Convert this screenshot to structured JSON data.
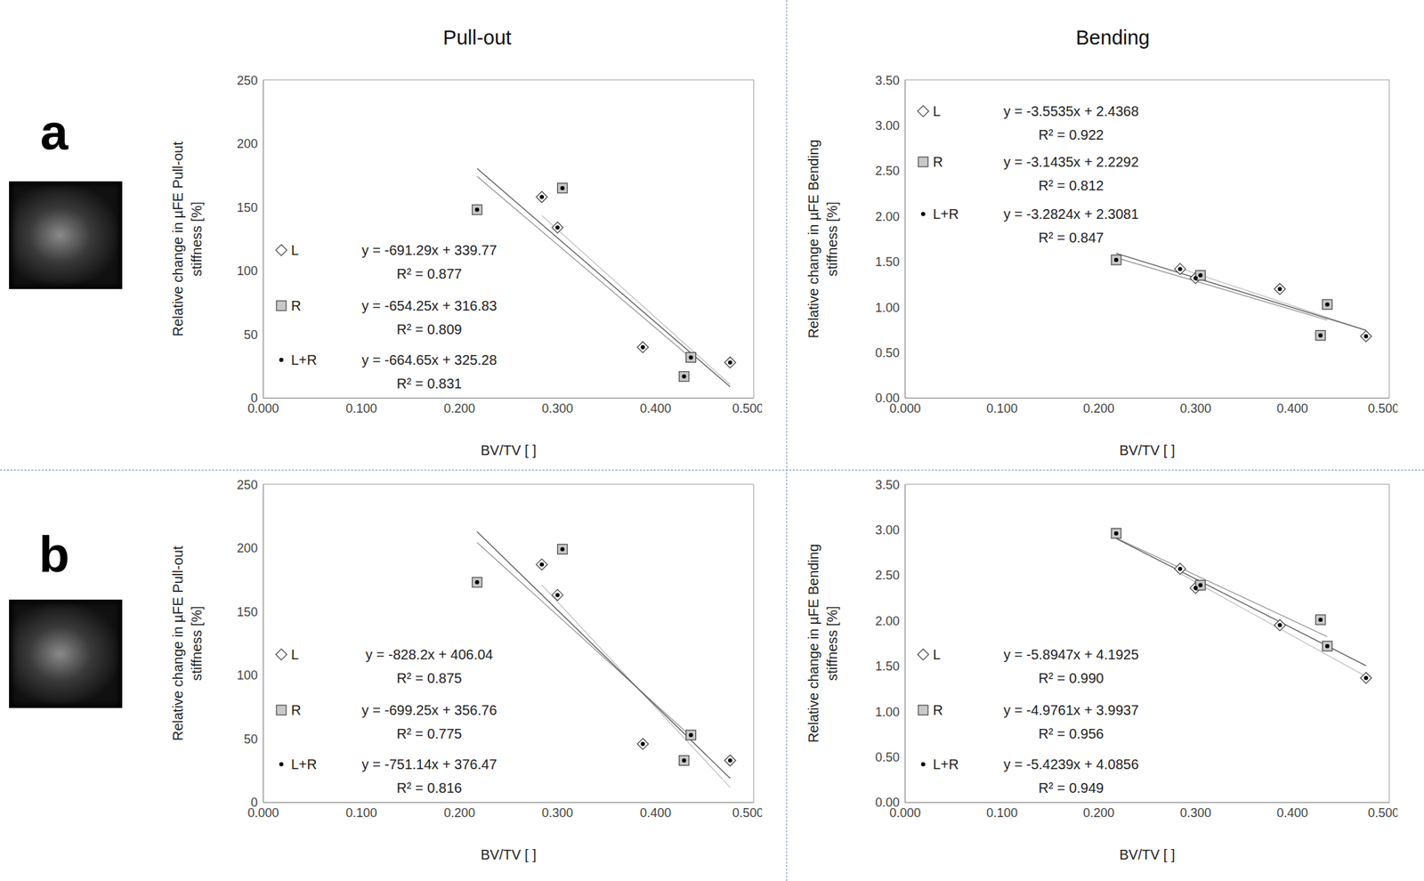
{
  "panel_labels": [
    "a",
    "b"
  ],
  "column_titles": [
    "Pull-out",
    "Bending"
  ],
  "chart_data": [
    {
      "type": "scatter",
      "panel": "a",
      "xlabel": "BV/TV [ ]",
      "ylabel": "Relative change in µFE Pull-out\nstiffness [%]",
      "xlim": [
        0,
        0.5
      ],
      "xticks": [
        {
          "value": 0,
          "label": "0.000"
        },
        {
          "value": 0.1,
          "label": "0.100"
        },
        {
          "value": 0.2,
          "label": "0.200"
        },
        {
          "value": 0.3,
          "label": "0.300"
        },
        {
          "value": 0.4,
          "label": "0.400"
        },
        {
          "value": 0.5,
          "label": "0.500"
        }
      ],
      "ylim": [
        0,
        250
      ],
      "yticks": [
        0,
        50,
        100,
        150,
        200,
        250
      ],
      "grid": false,
      "legend": "center left",
      "series": [
        {
          "name": "L",
          "marker": "diamond",
          "color": "#ffffff",
          "x": [
            0.284,
            0.3,
            0.387,
            0.476
          ],
          "values": [
            158,
            134,
            40,
            28
          ],
          "trendline": {
            "equation": "y = -691.29x + 339.77",
            "r2": "R² = 0.877",
            "slope": -691.29,
            "intercept": 339.77
          }
        },
        {
          "name": "R",
          "marker": "square",
          "color": "#c8c8c8",
          "x": [
            0.218,
            0.305,
            0.429,
            0.436
          ],
          "values": [
            148,
            165,
            17,
            32
          ],
          "trendline": {
            "equation": "y = -654.25x + 316.83",
            "r2": "R² = 0.809",
            "slope": -654.25,
            "intercept": 316.83
          }
        },
        {
          "name": "L+R",
          "marker": "dot",
          "color": "#000000",
          "x": [
            0.284,
            0.3,
            0.387,
            0.476,
            0.218,
            0.305,
            0.429,
            0.436
          ],
          "values": [
            158,
            134,
            40,
            28,
            148,
            165,
            17,
            32
          ],
          "trendline": {
            "equation": "y = -664.65x + 325.28",
            "r2": "R² = 0.831",
            "slope": -664.65,
            "intercept": 325.28
          }
        }
      ]
    },
    {
      "type": "scatter",
      "panel": "a",
      "xlabel": "BV/TV [ ]",
      "ylabel": "Relative change in µFE Bending\nstiffness [%]",
      "xlim": [
        0,
        0.5
      ],
      "xticks": [
        {
          "value": 0,
          "label": "0.000"
        },
        {
          "value": 0.1,
          "label": "0.100"
        },
        {
          "value": 0.2,
          "label": "0.200"
        },
        {
          "value": 0.3,
          "label": "0.300"
        },
        {
          "value": 0.4,
          "label": "0.400"
        },
        {
          "value": 0.5,
          "label": "0.500"
        }
      ],
      "ylim": [
        0,
        3.5
      ],
      "yticks": [
        {
          "value": 0,
          "label": "0.00"
        },
        {
          "value": 0.5,
          "label": "0.50"
        },
        {
          "value": 1,
          "label": "1.00"
        },
        {
          "value": 1.5,
          "label": "1.50"
        },
        {
          "value": 2,
          "label": "2.00"
        },
        {
          "value": 2.5,
          "label": "2.50"
        },
        {
          "value": 3,
          "label": "3.00"
        },
        {
          "value": 3.5,
          "label": "3.50"
        }
      ],
      "grid": false,
      "legend": "upper left",
      "series": [
        {
          "name": "L",
          "marker": "diamond",
          "color": "#ffffff",
          "x": [
            0.284,
            0.3,
            0.387,
            0.476
          ],
          "values": [
            1.42,
            1.32,
            1.2,
            0.68
          ],
          "trendline": {
            "equation": "y = -3.5535x + 2.4368",
            "r2": "R² = 0.922",
            "slope": -3.5535,
            "intercept": 2.4368
          }
        },
        {
          "name": "R",
          "marker": "square",
          "color": "#c8c8c8",
          "x": [
            0.218,
            0.305,
            0.429,
            0.436
          ],
          "values": [
            1.52,
            1.35,
            0.69,
            1.03
          ],
          "trendline": {
            "equation": "y = -3.1435x + 2.2292",
            "r2": "R² = 0.812",
            "slope": -3.1435,
            "intercept": 2.2292
          }
        },
        {
          "name": "L+R",
          "marker": "dot",
          "color": "#000000",
          "x": [
            0.284,
            0.3,
            0.387,
            0.476,
            0.218,
            0.305,
            0.429,
            0.436
          ],
          "values": [
            1.42,
            1.32,
            1.2,
            0.68,
            1.52,
            1.35,
            0.69,
            1.03
          ],
          "trendline": {
            "equation": "y = -3.2824x + 2.3081",
            "r2": "R² = 0.847",
            "slope": -3.2824,
            "intercept": 2.3081
          }
        }
      ]
    },
    {
      "type": "scatter",
      "panel": "b",
      "xlabel": "BV/TV [ ]",
      "ylabel": "Relative change in µFE Pull-out\nstiffness [%]",
      "xlim": [
        0,
        0.5
      ],
      "xticks": [
        {
          "value": 0,
          "label": "0.000"
        },
        {
          "value": 0.1,
          "label": "0.100"
        },
        {
          "value": 0.2,
          "label": "0.200"
        },
        {
          "value": 0.3,
          "label": "0.300"
        },
        {
          "value": 0.4,
          "label": "0.400"
        },
        {
          "value": 0.5,
          "label": "0.500"
        }
      ],
      "ylim": [
        0,
        250
      ],
      "yticks": [
        0,
        50,
        100,
        150,
        200,
        250
      ],
      "grid": false,
      "legend": "center left",
      "series": [
        {
          "name": "L",
          "marker": "diamond",
          "color": "#ffffff",
          "x": [
            0.284,
            0.3,
            0.387,
            0.476
          ],
          "values": [
            187,
            163,
            46,
            33
          ],
          "trendline": {
            "equation": "y = -828.2x + 406.04",
            "r2": "R² = 0.875",
            "slope": -828.2,
            "intercept": 406.04
          }
        },
        {
          "name": "R",
          "marker": "square",
          "color": "#c8c8c8",
          "x": [
            0.218,
            0.305,
            0.429,
            0.436
          ],
          "values": [
            173,
            199,
            33,
            53
          ],
          "trendline": {
            "equation": "y = -699.25x + 356.76",
            "r2": "R² = 0.775",
            "slope": -699.25,
            "intercept": 356.76
          }
        },
        {
          "name": "L+R",
          "marker": "dot",
          "color": "#000000",
          "x": [
            0.284,
            0.3,
            0.387,
            0.476,
            0.218,
            0.305,
            0.429,
            0.436
          ],
          "values": [
            187,
            163,
            46,
            33,
            173,
            199,
            33,
            53
          ],
          "trendline": {
            "equation": "y = -751.14x + 376.47",
            "r2": "R² = 0.816",
            "slope": -751.14,
            "intercept": 376.47
          }
        }
      ]
    },
    {
      "type": "scatter",
      "panel": "b",
      "xlabel": "BV/TV [ ]",
      "ylabel": "Relative change in µFE Bending\nstiffness [%]",
      "xlim": [
        0,
        0.5
      ],
      "xticks": [
        {
          "value": 0,
          "label": "0.000"
        },
        {
          "value": 0.1,
          "label": "0.100"
        },
        {
          "value": 0.2,
          "label": "0.200"
        },
        {
          "value": 0.3,
          "label": "0.300"
        },
        {
          "value": 0.4,
          "label": "0.400"
        },
        {
          "value": 0.5,
          "label": "0.500"
        }
      ],
      "ylim": [
        0,
        3.5
      ],
      "yticks": [
        {
          "value": 0,
          "label": "0.00"
        },
        {
          "value": 0.5,
          "label": "0.50"
        },
        {
          "value": 1,
          "label": "1.00"
        },
        {
          "value": 1.5,
          "label": "1.50"
        },
        {
          "value": 2,
          "label": "2.00"
        },
        {
          "value": 2.5,
          "label": "2.50"
        },
        {
          "value": 3,
          "label": "3.00"
        },
        {
          "value": 3.5,
          "label": "3.50"
        }
      ],
      "grid": false,
      "legend": "center left",
      "series": [
        {
          "name": "L",
          "marker": "diamond",
          "color": "#ffffff",
          "x": [
            0.284,
            0.3,
            0.387,
            0.476
          ],
          "values": [
            2.57,
            2.36,
            1.95,
            1.37
          ],
          "trendline": {
            "equation": "y = -5.8947x + 4.1925",
            "r2": "R² = 0.990",
            "slope": -5.8947,
            "intercept": 4.1925
          }
        },
        {
          "name": "R",
          "marker": "square",
          "color": "#c8c8c8",
          "x": [
            0.218,
            0.305,
            0.429,
            0.436
          ],
          "values": [
            2.96,
            2.39,
            2.01,
            1.72
          ],
          "trendline": {
            "equation": "y = -4.9761x + 3.9937",
            "r2": "R² = 0.956",
            "slope": -4.9761,
            "intercept": 3.9937
          }
        },
        {
          "name": "L+R",
          "marker": "dot",
          "color": "#000000",
          "x": [
            0.284,
            0.3,
            0.387,
            0.476,
            0.218,
            0.305,
            0.429,
            0.436
          ],
          "values": [
            2.57,
            2.36,
            1.95,
            1.37,
            2.96,
            2.39,
            2.01,
            1.72
          ],
          "trendline": {
            "equation": "y = -5.4239x + 4.0856",
            "r2": "R² = 0.949",
            "slope": -5.4239,
            "intercept": 4.0856
          }
        }
      ]
    }
  ]
}
